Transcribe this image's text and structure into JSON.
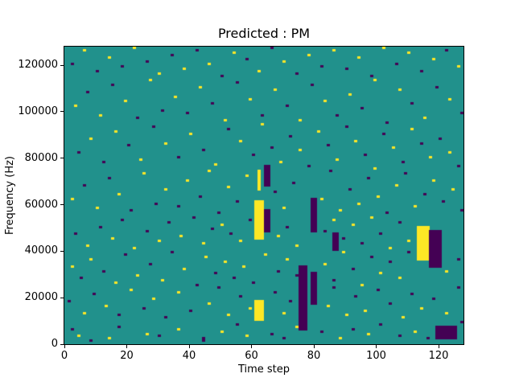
{
  "chart_data": {
    "type": "heatmap",
    "title": "Predicted : PM",
    "xlabel": "Time step",
    "ylabel": "Frequency (Hz)",
    "x_range": [
      0,
      128
    ],
    "y_range_hz": [
      0,
      128000
    ],
    "f_bins": 128,
    "freq_per_bin_hz": 1000,
    "xticks": [
      0,
      20,
      40,
      60,
      80,
      100,
      120
    ],
    "yticks": [
      0,
      20000,
      40000,
      60000,
      80000,
      100000,
      120000
    ],
    "grid": false,
    "legend": null,
    "colors": {
      "background": "#21918c",
      "yellow": "#fde725",
      "purple": "#440154"
    },
    "cells": [
      [
        2,
        6,
        "p"
      ],
      [
        4,
        3,
        "y"
      ],
      [
        8,
        1,
        "p"
      ],
      [
        14,
        2,
        "y"
      ],
      [
        17,
        7,
        "p"
      ],
      [
        26,
        4,
        "y"
      ],
      [
        30,
        3,
        "p"
      ],
      [
        36,
        6,
        "y"
      ],
      [
        44,
        1,
        "p"
      ],
      [
        44,
        2,
        "p"
      ],
      [
        50,
        5,
        "y"
      ],
      [
        55,
        8,
        "p"
      ],
      [
        58,
        3,
        "y"
      ],
      [
        66,
        4,
        "p"
      ],
      [
        70,
        2,
        "p"
      ],
      [
        74,
        7,
        "y"
      ],
      [
        82,
        5,
        "p"
      ],
      [
        88,
        2,
        "y"
      ],
      [
        92,
        6,
        "p"
      ],
      [
        97,
        4,
        "y"
      ],
      [
        101,
        8,
        "p"
      ],
      [
        107,
        3,
        "p"
      ],
      [
        112,
        5,
        "y"
      ],
      [
        116,
        2,
        "p"
      ],
      [
        127,
        9,
        "p"
      ],
      [
        1,
        18,
        "p"
      ],
      [
        6,
        13,
        "y"
      ],
      [
        9,
        21,
        "p"
      ],
      [
        13,
        16,
        "y"
      ],
      [
        17,
        12,
        "p"
      ],
      [
        21,
        23,
        "y"
      ],
      [
        25,
        15,
        "p"
      ],
      [
        28,
        19,
        "y"
      ],
      [
        32,
        11,
        "p"
      ],
      [
        36,
        22,
        "y"
      ],
      [
        40,
        14,
        "p"
      ],
      [
        46,
        17,
        "y"
      ],
      [
        49,
        24,
        "p"
      ],
      [
        52,
        12,
        "y"
      ],
      [
        56,
        20,
        "p"
      ],
      [
        59,
        15,
        "y"
      ],
      [
        67,
        22,
        "p"
      ],
      [
        70,
        13,
        "y"
      ],
      [
        72,
        18,
        "p"
      ],
      [
        84,
        16,
        "y"
      ],
      [
        86,
        24,
        "p"
      ],
      [
        90,
        12,
        "y"
      ],
      [
        93,
        20,
        "p"
      ],
      [
        96,
        14,
        "y"
      ],
      [
        100,
        23,
        "p"
      ],
      [
        104,
        17,
        "p"
      ],
      [
        108,
        11,
        "y"
      ],
      [
        111,
        21,
        "p"
      ],
      [
        114,
        15,
        "y"
      ],
      [
        118,
        19,
        "p"
      ],
      [
        122,
        13,
        "y"
      ],
      [
        126,
        24,
        "p"
      ],
      [
        2,
        33,
        "y"
      ],
      [
        5,
        28,
        "p"
      ],
      [
        8,
        36,
        "y"
      ],
      [
        12,
        31,
        "p"
      ],
      [
        16,
        26,
        "y"
      ],
      [
        19,
        38,
        "p"
      ],
      [
        23,
        29,
        "y"
      ],
      [
        27,
        34,
        "p"
      ],
      [
        31,
        27,
        "y"
      ],
      [
        34,
        39,
        "p"
      ],
      [
        38,
        32,
        "y"
      ],
      [
        42,
        25,
        "p"
      ],
      [
        45,
        37,
        "y"
      ],
      [
        48,
        30,
        "p"
      ],
      [
        51,
        35,
        "y"
      ],
      [
        54,
        28,
        "p"
      ],
      [
        57,
        33,
        "y"
      ],
      [
        60,
        26,
        "p"
      ],
      [
        64,
        38,
        "y"
      ],
      [
        68,
        31,
        "p"
      ],
      [
        71,
        36,
        "y"
      ],
      [
        74,
        29,
        "p"
      ],
      [
        83,
        34,
        "y"
      ],
      [
        86,
        27,
        "p"
      ],
      [
        89,
        39,
        "y"
      ],
      [
        92,
        32,
        "p"
      ],
      [
        95,
        25,
        "y"
      ],
      [
        98,
        37,
        "p"
      ],
      [
        101,
        30,
        "y"
      ],
      [
        104,
        35,
        "p"
      ],
      [
        107,
        28,
        "y"
      ],
      [
        110,
        39,
        "p"
      ],
      [
        122,
        31,
        "y"
      ],
      [
        126,
        36,
        "p"
      ],
      [
        3,
        47,
        "p"
      ],
      [
        7,
        42,
        "y"
      ],
      [
        11,
        50,
        "p"
      ],
      [
        15,
        45,
        "y"
      ],
      [
        18,
        53,
        "p"
      ],
      [
        22,
        41,
        "y"
      ],
      [
        26,
        48,
        "p"
      ],
      [
        30,
        44,
        "y"
      ],
      [
        33,
        52,
        "p"
      ],
      [
        37,
        46,
        "y"
      ],
      [
        41,
        54,
        "p"
      ],
      [
        44,
        43,
        "y"
      ],
      [
        47,
        49,
        "p"
      ],
      [
        50,
        51,
        "y"
      ],
      [
        53,
        47,
        "p"
      ],
      [
        56,
        44,
        "y"
      ],
      [
        59,
        53,
        "p"
      ],
      [
        68,
        46,
        "y"
      ],
      [
        71,
        50,
        "p"
      ],
      [
        74,
        42,
        "y"
      ],
      [
        83,
        48,
        "p"
      ],
      [
        86,
        53,
        "y"
      ],
      [
        89,
        45,
        "p"
      ],
      [
        92,
        51,
        "y"
      ],
      [
        95,
        43,
        "p"
      ],
      [
        98,
        54,
        "y"
      ],
      [
        101,
        47,
        "p"
      ],
      [
        104,
        41,
        "y"
      ],
      [
        107,
        52,
        "p"
      ],
      [
        110,
        44,
        "y"
      ],
      [
        2,
        62,
        "y"
      ],
      [
        6,
        68,
        "p"
      ],
      [
        10,
        58,
        "y"
      ],
      [
        14,
        71,
        "p"
      ],
      [
        17,
        64,
        "y"
      ],
      [
        21,
        57,
        "p"
      ],
      [
        25,
        73,
        "y"
      ],
      [
        29,
        60,
        "p"
      ],
      [
        32,
        66,
        "y"
      ],
      [
        36,
        59,
        "p"
      ],
      [
        39,
        70,
        "y"
      ],
      [
        43,
        63,
        "p"
      ],
      [
        46,
        74,
        "y"
      ],
      [
        49,
        56,
        "p"
      ],
      [
        52,
        67,
        "y"
      ],
      [
        55,
        61,
        "p"
      ],
      [
        58,
        72,
        "y"
      ],
      [
        67,
        65,
        "p"
      ],
      [
        70,
        58,
        "y"
      ],
      [
        73,
        69,
        "p"
      ],
      [
        82,
        62,
        "y"
      ],
      [
        85,
        74,
        "p"
      ],
      [
        88,
        57,
        "y"
      ],
      [
        91,
        66,
        "p"
      ],
      [
        94,
        60,
        "y"
      ],
      [
        97,
        71,
        "p"
      ],
      [
        100,
        63,
        "y"
      ],
      [
        103,
        56,
        "p"
      ],
      [
        106,
        68,
        "y"
      ],
      [
        109,
        73,
        "p"
      ],
      [
        112,
        59,
        "y"
      ],
      [
        115,
        64,
        "p"
      ],
      [
        118,
        70,
        "y"
      ],
      [
        121,
        61,
        "p"
      ],
      [
        124,
        66,
        "y"
      ],
      [
        127,
        57,
        "p"
      ],
      [
        4,
        82,
        "p"
      ],
      [
        8,
        88,
        "y"
      ],
      [
        12,
        78,
        "p"
      ],
      [
        16,
        91,
        "y"
      ],
      [
        20,
        85,
        "p"
      ],
      [
        24,
        79,
        "y"
      ],
      [
        28,
        93,
        "p"
      ],
      [
        32,
        86,
        "y"
      ],
      [
        36,
        80,
        "p"
      ],
      [
        40,
        90,
        "y"
      ],
      [
        44,
        83,
        "p"
      ],
      [
        48,
        77,
        "y"
      ],
      [
        52,
        92,
        "p"
      ],
      [
        56,
        87,
        "y"
      ],
      [
        60,
        81,
        "p"
      ],
      [
        63,
        94,
        "y"
      ],
      [
        66,
        84,
        "p"
      ],
      [
        69,
        78,
        "y"
      ],
      [
        72,
        89,
        "p"
      ],
      [
        75,
        83,
        "y"
      ],
      [
        78,
        76,
        "p"
      ],
      [
        81,
        91,
        "y"
      ],
      [
        84,
        85,
        "p"
      ],
      [
        87,
        79,
        "y"
      ],
      [
        90,
        93,
        "p"
      ],
      [
        93,
        87,
        "y"
      ],
      [
        96,
        81,
        "p"
      ],
      [
        99,
        75,
        "y"
      ],
      [
        102,
        90,
        "p"
      ],
      [
        105,
        84,
        "y"
      ],
      [
        108,
        78,
        "p"
      ],
      [
        111,
        92,
        "y"
      ],
      [
        114,
        86,
        "p"
      ],
      [
        117,
        80,
        "y"
      ],
      [
        120,
        88,
        "p"
      ],
      [
        123,
        82,
        "y"
      ],
      [
        126,
        76,
        "p"
      ],
      [
        3,
        102,
        "y"
      ],
      [
        7,
        108,
        "p"
      ],
      [
        11,
        98,
        "y"
      ],
      [
        15,
        111,
        "p"
      ],
      [
        19,
        104,
        "y"
      ],
      [
        23,
        97,
        "p"
      ],
      [
        27,
        113,
        "y"
      ],
      [
        31,
        100,
        "p"
      ],
      [
        35,
        106,
        "y"
      ],
      [
        39,
        99,
        "p"
      ],
      [
        43,
        110,
        "y"
      ],
      [
        47,
        103,
        "p"
      ],
      [
        51,
        96,
        "y"
      ],
      [
        55,
        112,
        "p"
      ],
      [
        59,
        105,
        "y"
      ],
      [
        63,
        98,
        "p"
      ],
      [
        67,
        109,
        "y"
      ],
      [
        71,
        102,
        "p"
      ],
      [
        75,
        96,
        "y"
      ],
      [
        79,
        111,
        "p"
      ],
      [
        83,
        104,
        "y"
      ],
      [
        87,
        98,
        "p"
      ],
      [
        91,
        107,
        "y"
      ],
      [
        95,
        101,
        "p"
      ],
      [
        99,
        113,
        "y"
      ],
      [
        103,
        95,
        "p"
      ],
      [
        107,
        109,
        "y"
      ],
      [
        111,
        103,
        "p"
      ],
      [
        115,
        97,
        "y"
      ],
      [
        119,
        110,
        "p"
      ],
      [
        123,
        105,
        "y"
      ],
      [
        127,
        99,
        "p"
      ],
      [
        2,
        120,
        "p"
      ],
      [
        6,
        126,
        "y"
      ],
      [
        10,
        117,
        "p"
      ],
      [
        14,
        123,
        "y"
      ],
      [
        18,
        119,
        "p"
      ],
      [
        22,
        127,
        "y"
      ],
      [
        26,
        121,
        "p"
      ],
      [
        30,
        116,
        "y"
      ],
      [
        34,
        124,
        "p"
      ],
      [
        38,
        118,
        "y"
      ],
      [
        42,
        126,
        "p"
      ],
      [
        46,
        120,
        "y"
      ],
      [
        50,
        115,
        "p"
      ],
      [
        54,
        125,
        "y"
      ],
      [
        58,
        122,
        "p"
      ],
      [
        62,
        117,
        "y"
      ],
      [
        66,
        127,
        "p"
      ],
      [
        70,
        121,
        "y"
      ],
      [
        74,
        116,
        "p"
      ],
      [
        78,
        124,
        "y"
      ],
      [
        82,
        119,
        "p"
      ],
      [
        86,
        126,
        "y"
      ],
      [
        90,
        118,
        "p"
      ],
      [
        94,
        123,
        "y"
      ],
      [
        98,
        115,
        "p"
      ],
      [
        102,
        127,
        "y"
      ],
      [
        106,
        120,
        "p"
      ],
      [
        110,
        125,
        "y"
      ],
      [
        114,
        117,
        "p"
      ],
      [
        118,
        122,
        "y"
      ],
      [
        122,
        126,
        "p"
      ],
      [
        126,
        119,
        "y"
      ]
    ],
    "blocks": [
      {
        "t0": 61,
        "t1": 63,
        "f0": 45,
        "f1": 61,
        "c": "y"
      },
      {
        "t0": 64,
        "t1": 65,
        "f0": 48,
        "f1": 57,
        "c": "p"
      },
      {
        "t0": 62,
        "t1": 62,
        "f0": 66,
        "f1": 74,
        "c": "y"
      },
      {
        "t0": 64,
        "t1": 65,
        "f0": 68,
        "f1": 76,
        "c": "p"
      },
      {
        "t0": 61,
        "t1": 63,
        "f0": 10,
        "f1": 18,
        "c": "y"
      },
      {
        "t0": 75,
        "t1": 77,
        "f0": 6,
        "f1": 33,
        "c": "p"
      },
      {
        "t0": 79,
        "t1": 80,
        "f0": 17,
        "f1": 30,
        "c": "p"
      },
      {
        "t0": 79,
        "t1": 80,
        "f0": 48,
        "f1": 62,
        "c": "p"
      },
      {
        "t0": 86,
        "t1": 87,
        "f0": 40,
        "f1": 47,
        "c": "p"
      },
      {
        "t0": 113,
        "t1": 116,
        "f0": 36,
        "f1": 50,
        "c": "y"
      },
      {
        "t0": 117,
        "t1": 120,
        "f0": 33,
        "f1": 48,
        "c": "p"
      },
      {
        "t0": 119,
        "t1": 125,
        "f0": 2,
        "f1": 7,
        "c": "p"
      }
    ]
  }
}
